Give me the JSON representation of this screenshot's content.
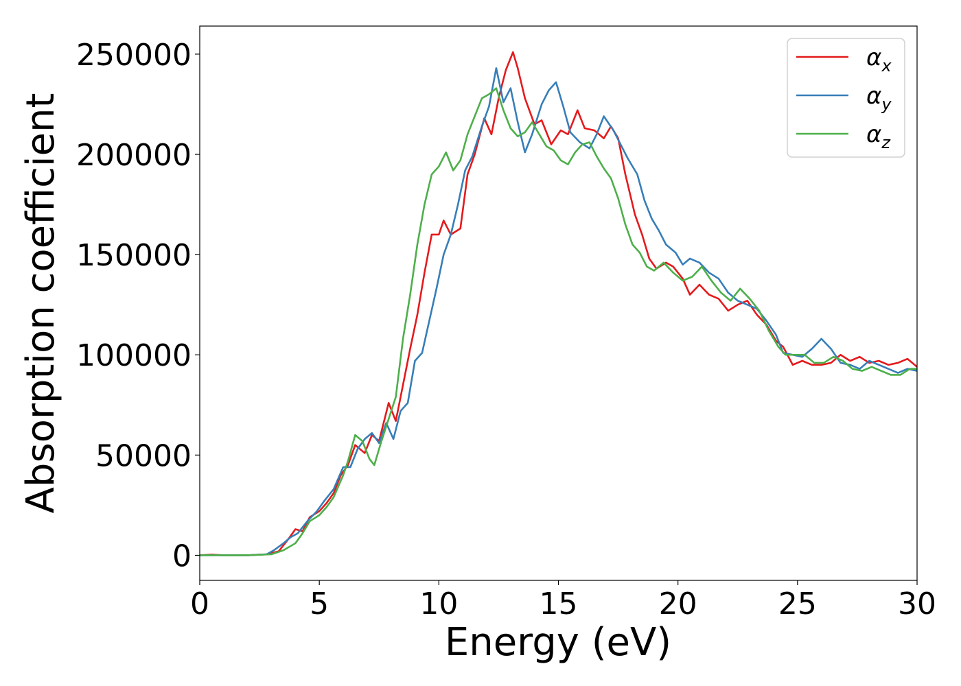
{
  "chart_data": {
    "type": "line",
    "xlabel": "Energy (eV)",
    "ylabel": "Absorption coefficient",
    "xlim": [
      0,
      30
    ],
    "ylim": [
      -12500,
      264000
    ],
    "xticks": [
      0,
      5,
      10,
      15,
      20,
      25,
      30
    ],
    "yticks": [
      0,
      50000,
      100000,
      150000,
      200000,
      250000
    ],
    "grid": false,
    "legend_position": "top-right",
    "series": [
      {
        "name": "αx",
        "symbol": "α",
        "subscript": "x",
        "color": "#e41a1c",
        "points": [
          [
            0,
            0
          ],
          [
            0.5,
            300
          ],
          [
            1,
            0
          ],
          [
            2,
            0
          ],
          [
            2.8,
            500
          ],
          [
            3.3,
            2000
          ],
          [
            3.7,
            8000
          ],
          [
            4.0,
            13000
          ],
          [
            4.3,
            12000
          ],
          [
            4.6,
            19000
          ],
          [
            5.0,
            22000
          ],
          [
            5.3,
            26000
          ],
          [
            5.6,
            31000
          ],
          [
            5.9,
            40000
          ],
          [
            6.2,
            45000
          ],
          [
            6.5,
            55000
          ],
          [
            6.9,
            51000
          ],
          [
            7.2,
            60000
          ],
          [
            7.5,
            57000
          ],
          [
            7.9,
            76000
          ],
          [
            8.2,
            67000
          ],
          [
            8.5,
            85000
          ],
          [
            8.8,
            103000
          ],
          [
            9.1,
            120000
          ],
          [
            9.4,
            141000
          ],
          [
            9.7,
            160000
          ],
          [
            10.0,
            160000
          ],
          [
            10.2,
            167000
          ],
          [
            10.5,
            160000
          ],
          [
            10.9,
            163000
          ],
          [
            11.2,
            190000
          ],
          [
            11.5,
            200000
          ],
          [
            11.9,
            218000
          ],
          [
            12.2,
            210000
          ],
          [
            12.5,
            228000
          ],
          [
            12.8,
            242000
          ],
          [
            13.1,
            251000
          ],
          [
            13.3,
            243000
          ],
          [
            13.6,
            228000
          ],
          [
            14.0,
            215000
          ],
          [
            14.3,
            217000
          ],
          [
            14.7,
            205000
          ],
          [
            15.1,
            212000
          ],
          [
            15.4,
            210000
          ],
          [
            15.8,
            222000
          ],
          [
            16.1,
            213000
          ],
          [
            16.5,
            212000
          ],
          [
            16.9,
            208000
          ],
          [
            17.2,
            214000
          ],
          [
            17.5,
            208000
          ],
          [
            17.8,
            190000
          ],
          [
            18.2,
            170000
          ],
          [
            18.5,
            160000
          ],
          [
            18.8,
            148000
          ],
          [
            19.1,
            143000
          ],
          [
            19.5,
            146000
          ],
          [
            19.8,
            144000
          ],
          [
            20.2,
            138000
          ],
          [
            20.5,
            130000
          ],
          [
            20.9,
            135000
          ],
          [
            21.3,
            130000
          ],
          [
            21.7,
            128000
          ],
          [
            22.1,
            122000
          ],
          [
            22.5,
            125000
          ],
          [
            22.9,
            127000
          ],
          [
            23.3,
            120000
          ],
          [
            23.7,
            115000
          ],
          [
            24.1,
            107000
          ],
          [
            24.4,
            104000
          ],
          [
            24.8,
            95000
          ],
          [
            25.2,
            97000
          ],
          [
            25.6,
            95000
          ],
          [
            26.0,
            95000
          ],
          [
            26.4,
            96000
          ],
          [
            26.8,
            100000
          ],
          [
            27.2,
            97000
          ],
          [
            27.6,
            99000
          ],
          [
            28.0,
            96000
          ],
          [
            28.4,
            97000
          ],
          [
            28.8,
            95000
          ],
          [
            29.2,
            96000
          ],
          [
            29.6,
            98000
          ],
          [
            30.0,
            94000
          ]
        ]
      },
      {
        "name": "αy",
        "symbol": "α",
        "subscript": "y",
        "color": "#377eb8",
        "points": [
          [
            0,
            0
          ],
          [
            0.5,
            0
          ],
          [
            1,
            0
          ],
          [
            2,
            0
          ],
          [
            2.8,
            500
          ],
          [
            3.1,
            2500
          ],
          [
            3.5,
            6000
          ],
          [
            3.8,
            9000
          ],
          [
            4.1,
            11000
          ],
          [
            4.5,
            17000
          ],
          [
            4.9,
            22000
          ],
          [
            5.2,
            27000
          ],
          [
            5.6,
            33000
          ],
          [
            6.0,
            44000
          ],
          [
            6.3,
            44000
          ],
          [
            6.6,
            53000
          ],
          [
            6.9,
            58000
          ],
          [
            7.2,
            61000
          ],
          [
            7.5,
            56000
          ],
          [
            7.8,
            66000
          ],
          [
            8.1,
            58000
          ],
          [
            8.4,
            72000
          ],
          [
            8.7,
            76000
          ],
          [
            9.0,
            97000
          ],
          [
            9.3,
            101000
          ],
          [
            9.6,
            117000
          ],
          [
            9.9,
            133000
          ],
          [
            10.2,
            150000
          ],
          [
            10.5,
            160000
          ],
          [
            10.8,
            175000
          ],
          [
            11.1,
            192000
          ],
          [
            11.4,
            199000
          ],
          [
            11.8,
            214000
          ],
          [
            12.1,
            224000
          ],
          [
            12.4,
            243000
          ],
          [
            12.7,
            226000
          ],
          [
            13.0,
            233000
          ],
          [
            13.3,
            216000
          ],
          [
            13.6,
            201000
          ],
          [
            13.9,
            210000
          ],
          [
            14.3,
            225000
          ],
          [
            14.6,
            232000
          ],
          [
            14.9,
            236000
          ],
          [
            15.2,
            224000
          ],
          [
            15.5,
            211000
          ],
          [
            15.9,
            206000
          ],
          [
            16.3,
            203000
          ],
          [
            16.6,
            210000
          ],
          [
            16.9,
            219000
          ],
          [
            17.3,
            212000
          ],
          [
            17.6,
            205000
          ],
          [
            17.9,
            198000
          ],
          [
            18.3,
            190000
          ],
          [
            18.6,
            177000
          ],
          [
            18.9,
            168000
          ],
          [
            19.2,
            162000
          ],
          [
            19.5,
            155000
          ],
          [
            19.9,
            151000
          ],
          [
            20.2,
            145000
          ],
          [
            20.5,
            148000
          ],
          [
            20.9,
            146000
          ],
          [
            21.3,
            141000
          ],
          [
            21.7,
            138000
          ],
          [
            22.1,
            131000
          ],
          [
            22.5,
            127000
          ],
          [
            22.9,
            125000
          ],
          [
            23.3,
            123000
          ],
          [
            23.7,
            117000
          ],
          [
            24.1,
            110000
          ],
          [
            24.4,
            101000
          ],
          [
            24.8,
            100000
          ],
          [
            25.2,
            99000
          ],
          [
            25.6,
            103000
          ],
          [
            26.0,
            108000
          ],
          [
            26.4,
            103000
          ],
          [
            26.8,
            96000
          ],
          [
            27.2,
            95000
          ],
          [
            27.6,
            93000
          ],
          [
            28.0,
            97000
          ],
          [
            28.4,
            95000
          ],
          [
            28.8,
            93000
          ],
          [
            29.2,
            91000
          ],
          [
            29.6,
            93000
          ],
          [
            30.0,
            92000
          ]
        ]
      },
      {
        "name": "αz",
        "symbol": "α",
        "subscript": "z",
        "color": "#4daf4a",
        "points": [
          [
            0,
            0
          ],
          [
            0.5,
            0
          ],
          [
            1,
            0
          ],
          [
            2,
            0
          ],
          [
            3,
            500
          ],
          [
            3.5,
            2500
          ],
          [
            4.0,
            6000
          ],
          [
            4.3,
            11000
          ],
          [
            4.6,
            17000
          ],
          [
            5.0,
            20000
          ],
          [
            5.3,
            24000
          ],
          [
            5.6,
            29000
          ],
          [
            6.0,
            40000
          ],
          [
            6.2,
            47000
          ],
          [
            6.5,
            60000
          ],
          [
            6.8,
            57000
          ],
          [
            7.1,
            48000
          ],
          [
            7.3,
            45000
          ],
          [
            7.6,
            57000
          ],
          [
            7.9,
            68000
          ],
          [
            8.2,
            79000
          ],
          [
            8.5,
            108000
          ],
          [
            8.8,
            130000
          ],
          [
            9.1,
            155000
          ],
          [
            9.4,
            175000
          ],
          [
            9.7,
            190000
          ],
          [
            10.0,
            194000
          ],
          [
            10.3,
            201000
          ],
          [
            10.6,
            192000
          ],
          [
            10.9,
            197000
          ],
          [
            11.2,
            210000
          ],
          [
            11.5,
            219000
          ],
          [
            11.8,
            228000
          ],
          [
            12.1,
            230000
          ],
          [
            12.4,
            233000
          ],
          [
            12.7,
            222000
          ],
          [
            13.0,
            213000
          ],
          [
            13.3,
            209000
          ],
          [
            13.6,
            211000
          ],
          [
            13.9,
            216000
          ],
          [
            14.2,
            210000
          ],
          [
            14.5,
            204000
          ],
          [
            14.8,
            202000
          ],
          [
            15.1,
            197000
          ],
          [
            15.4,
            195000
          ],
          [
            15.7,
            201000
          ],
          [
            16.0,
            205000
          ],
          [
            16.3,
            206000
          ],
          [
            16.6,
            199000
          ],
          [
            16.9,
            193000
          ],
          [
            17.2,
            188000
          ],
          [
            17.5,
            178000
          ],
          [
            17.8,
            165000
          ],
          [
            18.1,
            155000
          ],
          [
            18.4,
            151000
          ],
          [
            18.7,
            144000
          ],
          [
            19.0,
            142000
          ],
          [
            19.4,
            146000
          ],
          [
            19.8,
            141000
          ],
          [
            20.2,
            137000
          ],
          [
            20.6,
            139000
          ],
          [
            21.0,
            144000
          ],
          [
            21.4,
            137000
          ],
          [
            21.8,
            131000
          ],
          [
            22.2,
            127000
          ],
          [
            22.6,
            133000
          ],
          [
            23.0,
            128000
          ],
          [
            23.4,
            122000
          ],
          [
            23.8,
            112000
          ],
          [
            24.2,
            104000
          ],
          [
            24.5,
            100000
          ],
          [
            24.9,
            100000
          ],
          [
            25.3,
            100000
          ],
          [
            25.7,
            96000
          ],
          [
            26.1,
            96000
          ],
          [
            26.5,
            99000
          ],
          [
            26.9,
            97000
          ],
          [
            27.3,
            93000
          ],
          [
            27.7,
            92000
          ],
          [
            28.1,
            94000
          ],
          [
            28.5,
            92000
          ],
          [
            28.9,
            90000
          ],
          [
            29.3,
            90000
          ],
          [
            29.7,
            93000
          ],
          [
            30.0,
            93000
          ]
        ]
      }
    ]
  }
}
